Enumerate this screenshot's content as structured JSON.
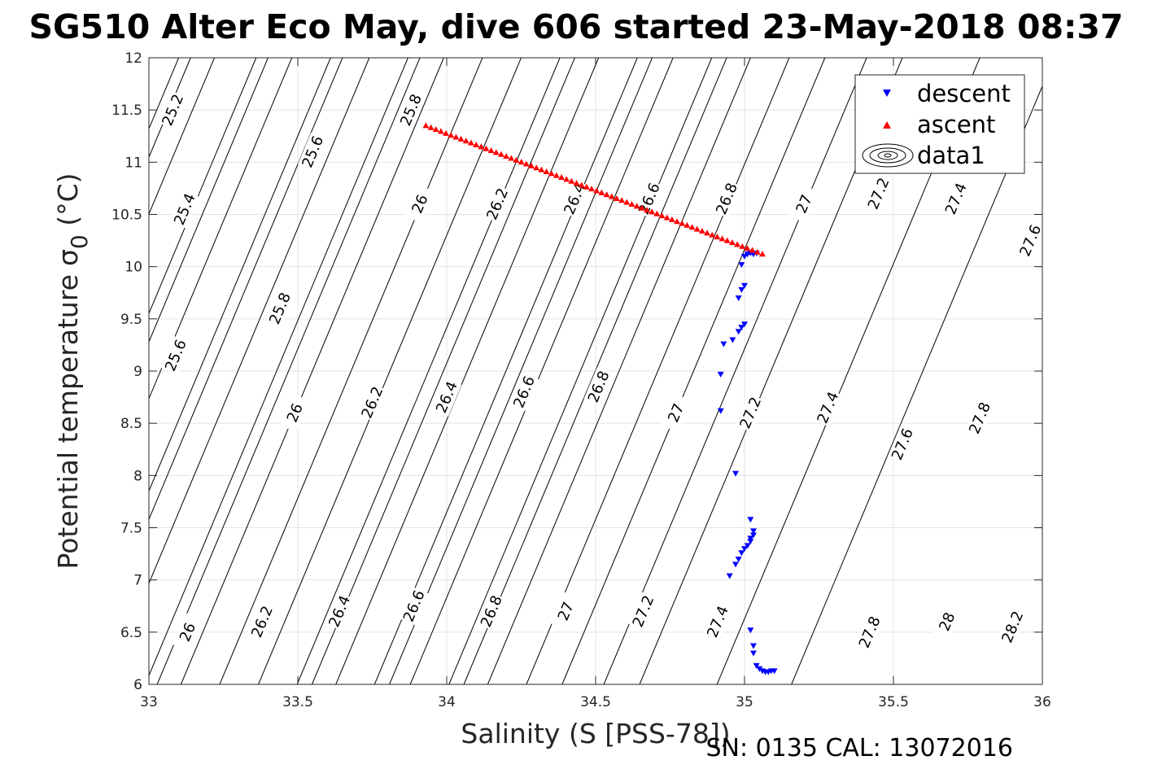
{
  "chart_data": {
    "type": "scatter",
    "title": "SG510 Alter Eco May, dive 606 started 23-May-2018 08:37",
    "xlabel": "Salinity (S [PSS-78])",
    "ylabel": "Potential temperature",
    "ylabel_symbol": "σ",
    "ylabel_subscript": "0",
    "ylabel_unit": " (°C)",
    "footer": "SN: 0135  CAL: 13072016",
    "xlim": [
      33,
      36
    ],
    "ylim": [
      6,
      12
    ],
    "xticks": [
      "33",
      "33.5",
      "34",
      "34.5",
      "35",
      "35.5",
      "36"
    ],
    "yticks": [
      "6",
      "6.5",
      "7",
      "7.5",
      "8",
      "8.5",
      "9",
      "9.5",
      "10",
      "10.5",
      "11",
      "11.5",
      "12"
    ],
    "grid": true,
    "legend": {
      "position": "top-right",
      "entries": [
        "descent",
        "ascent",
        "data1"
      ]
    },
    "density_contours": [
      {
        "level": "25.2",
        "s_at_t12": 33.22,
        "label": [
          33.08,
          11.5
        ]
      },
      {
        "level": "25.4",
        "s_at_t12": 32.95,
        "label": [
          33.12,
          10.55
        ]
      },
      {
        "level": "25.6",
        "s_at_t12": 32.6,
        "label": [
          33.09,
          9.15
        ]
      },
      {
        "level": "25.6",
        "s_at_t12": 33.48,
        "label": [
          33.55,
          11.1
        ]
      },
      {
        "level": "25.8",
        "s_at_t12": 32.85,
        "label": [
          33.44,
          9.6
        ]
      },
      {
        "level": "25.8",
        "s_at_t12": 33.74,
        "label": [
          33.88,
          11.5
        ]
      },
      {
        "level": "26",
        "s_at_t12": 32.11,
        "label": [
          33.13,
          6.5
        ]
      },
      {
        "level": "26",
        "s_at_t12": 33.1,
        "label": [
          33.49,
          8.6
        ]
      },
      {
        "level": "26",
        "s_at_t12": 33.99,
        "label": [
          33.91,
          10.6
        ]
      },
      {
        "level": "26.2",
        "s_at_t12": 32.37,
        "label": [
          33.38,
          6.6
        ]
      },
      {
        "level": "26.2",
        "s_at_t12": 33.36,
        "label": [
          33.75,
          8.7
        ]
      },
      {
        "level": "26.2",
        "s_at_t12": 34.25,
        "label": [
          34.17,
          10.6
        ]
      },
      {
        "level": "26.4",
        "s_at_t12": 32.63,
        "label": [
          33.64,
          6.7
        ]
      },
      {
        "level": "26.4",
        "s_at_t12": 33.61,
        "label": [
          34.0,
          8.75
        ]
      },
      {
        "level": "26.4",
        "s_at_t12": 34.51,
        "label": [
          34.43,
          10.65
        ]
      },
      {
        "level": "26.6",
        "s_at_t12": 32.88,
        "label": [
          33.89,
          6.75
        ]
      },
      {
        "level": "26.6",
        "s_at_t12": 33.87,
        "label": [
          34.26,
          8.8
        ]
      },
      {
        "level": "26.6",
        "s_at_t12": 34.76,
        "label": [
          34.68,
          10.65
        ]
      },
      {
        "level": "26.8",
        "s_at_t12": 33.14,
        "label": [
          34.15,
          6.7
        ]
      },
      {
        "level": "26.8",
        "s_at_t12": 34.12,
        "label": [
          34.51,
          8.85
        ]
      },
      {
        "level": "26.8",
        "s_at_t12": 35.02,
        "label": [
          34.94,
          10.65
        ]
      },
      {
        "level": "27",
        "s_at_t12": 33.4,
        "label": [
          34.4,
          6.7
        ]
      },
      {
        "level": "27",
        "s_at_t12": 34.38,
        "label": [
          34.77,
          8.6
        ]
      },
      {
        "level": "27",
        "s_at_t12": 35.27,
        "label": [
          35.2,
          10.6
        ]
      },
      {
        "level": "27.2",
        "s_at_t12": 33.65,
        "label": [
          34.66,
          6.7
        ]
      },
      {
        "level": "27.2",
        "s_at_t12": 34.64,
        "label": [
          35.02,
          8.6
        ]
      },
      {
        "level": "27.2",
        "s_at_t12": 35.53,
        "label": [
          35.45,
          10.7
        ]
      },
      {
        "level": "27.4",
        "s_at_t12": 33.91,
        "label": [
          34.91,
          6.6
        ]
      },
      {
        "level": "27.4",
        "s_at_t12": 34.89,
        "label": [
          35.28,
          8.65
        ]
      },
      {
        "level": "27.4",
        "s_at_t12": 35.79,
        "label": [
          35.71,
          10.65
        ]
      },
      {
        "level": "27.6",
        "s_at_t12": 35.15,
        "label": [
          35.53,
          8.3
        ]
      },
      {
        "level": "27.6",
        "s_at_t12": 36.04,
        "label": [
          35.96,
          10.25
        ]
      },
      {
        "level": "27.8",
        "s_at_t12": 34.43,
        "label": [
          35.42,
          6.5
        ]
      },
      {
        "level": "27.8",
        "s_at_t12": 35.41,
        "label": [
          35.79,
          8.55
        ]
      },
      {
        "level": "28",
        "s_at_t12": 34.69,
        "label": [
          35.68,
          6.6
        ]
      },
      {
        "level": "28.2",
        "s_at_t12": 34.94,
        "label": [
          35.9,
          6.55
        ]
      }
    ],
    "series": [
      {
        "name": "descent",
        "marker": "triangle-down",
        "color": "#0000ff",
        "points": [
          [
            35.0,
            10.1
          ],
          [
            35.01,
            10.12
          ],
          [
            35.02,
            10.13
          ],
          [
            35.03,
            10.12
          ],
          [
            35.04,
            10.13
          ],
          [
            34.99,
            10.02
          ],
          [
            35.0,
            9.82
          ],
          [
            34.99,
            9.78
          ],
          [
            34.98,
            9.7
          ],
          [
            35.0,
            9.45
          ],
          [
            34.99,
            9.42
          ],
          [
            34.98,
            9.38
          ],
          [
            34.96,
            9.3
          ],
          [
            34.93,
            9.26
          ],
          [
            34.92,
            8.97
          ],
          [
            34.92,
            8.62
          ],
          [
            34.97,
            8.02
          ],
          [
            35.02,
            7.58
          ],
          [
            35.03,
            7.47
          ],
          [
            35.03,
            7.43
          ],
          [
            35.02,
            7.4
          ],
          [
            35.02,
            7.37
          ],
          [
            35.01,
            7.33
          ],
          [
            35.0,
            7.3
          ],
          [
            34.99,
            7.26
          ],
          [
            34.98,
            7.2
          ],
          [
            34.97,
            7.15
          ],
          [
            34.95,
            7.04
          ],
          [
            35.02,
            6.52
          ],
          [
            35.03,
            6.37
          ],
          [
            35.03,
            6.3
          ],
          [
            35.04,
            6.18
          ],
          [
            35.05,
            6.15
          ],
          [
            35.06,
            6.13
          ],
          [
            35.07,
            6.12
          ],
          [
            35.08,
            6.12
          ],
          [
            35.09,
            6.13
          ],
          [
            35.1,
            6.13
          ]
        ]
      },
      {
        "name": "ascent",
        "marker": "triangle-up",
        "color": "#ff0000",
        "line_from": [
          33.93,
          11.35
        ],
        "line_to": [
          35.06,
          10.12
        ],
        "n_points": 68
      }
    ]
  }
}
